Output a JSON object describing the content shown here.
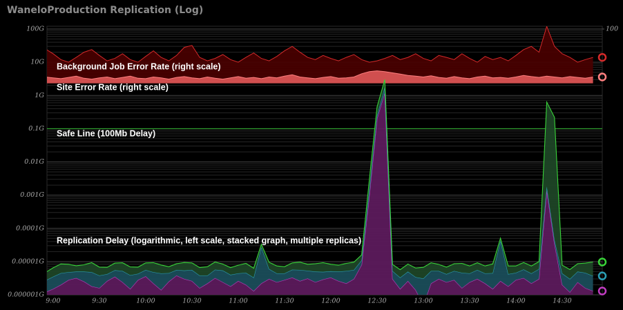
{
  "chart_data": {
    "type": "log_area",
    "title": "WaneloProduction Replication (Log)",
    "categories": [
      null,
      "9:00",
      null,
      null,
      null,
      null,
      null,
      "9:30",
      null,
      null,
      null,
      null,
      null,
      "10:00",
      null,
      null,
      null,
      null,
      null,
      "10:30",
      null,
      null,
      null,
      null,
      null,
      "11:00",
      null,
      null,
      null,
      null,
      null,
      "11:30",
      null,
      null,
      null,
      null,
      null,
      "12:00",
      null,
      null,
      null,
      null,
      null,
      "12:30",
      null,
      null,
      null,
      null,
      null,
      "13:00",
      null,
      null,
      null,
      null,
      null,
      "13:30",
      null,
      null,
      null,
      null,
      null,
      "14:00",
      null,
      null,
      null,
      null,
      null,
      "14:30",
      null,
      null,
      null,
      null
    ],
    "log_y": true,
    "grid": true,
    "ylim": [
      1e-06,
      100
    ],
    "yticks": [
      {
        "value": 100,
        "label": "100G"
      },
      {
        "value": 10,
        "label": "10G"
      },
      {
        "value": 1,
        "label": "1G"
      },
      {
        "value": 0.1,
        "label": "0.1G"
      },
      {
        "value": 0.01,
        "label": "0.01G"
      },
      {
        "value": 0.001,
        "label": "0.001G"
      },
      {
        "value": 0.0001,
        "label": "0.0001G"
      },
      {
        "value": 1e-05,
        "label": "0.00001G"
      },
      {
        "value": 1e-06,
        "label": "0.000001G"
      }
    ],
    "y2lim": [
      1e-06,
      100
    ],
    "y2ticks": [
      100
    ],
    "series": [
      {
        "name": "Background Job Error Rate (right scale)",
        "axis": "y2",
        "color": "#d42a2a",
        "fill": "#4a0000",
        "values": [
          25,
          18,
          12,
          10,
          14,
          20,
          24,
          16,
          11,
          13,
          18,
          12,
          10,
          15,
          22,
          14,
          11,
          16,
          28,
          32,
          14,
          11,
          13,
          17,
          12,
          10,
          14,
          19,
          13,
          11,
          15,
          22,
          30,
          20,
          14,
          12,
          16,
          13,
          11,
          14,
          17,
          12,
          10,
          11,
          13,
          16,
          12,
          14,
          18,
          13,
          11,
          16,
          14,
          12,
          18,
          13,
          10,
          15,
          12,
          14,
          11,
          16,
          24,
          30,
          20,
          120,
          30,
          18,
          14,
          10,
          12,
          14
        ]
      },
      {
        "name": "Site Error Rate (right scale)",
        "axis": "y2",
        "color": "#ff8080",
        "fill": "#e05858",
        "values": [
          3.6,
          3.4,
          3.2,
          3.5,
          3.8,
          3.3,
          3.1,
          3.4,
          3.6,
          3.2,
          3.5,
          3.8,
          3.3,
          3.2,
          3.6,
          3.4,
          3.1,
          3.5,
          3.7,
          3.4,
          3.2,
          3.6,
          3.3,
          3.1,
          3.4,
          3.7,
          3.3,
          3.5,
          3.2,
          3.6,
          3.4,
          3.8,
          4.2,
          3.6,
          3.4,
          3.2,
          3.5,
          3.7,
          3.3,
          3.4,
          3.6,
          4.5,
          5.2,
          5.5,
          5.2,
          4.8,
          4.4,
          4,
          3.8,
          3.6,
          3.9,
          3.5,
          3.3,
          3.7,
          3.4,
          3.2,
          3.6,
          3.8,
          3.4,
          3.5,
          3.3,
          3.6,
          4,
          3.7,
          3.5,
          3.8,
          3.6,
          3.4,
          3.7,
          3.5,
          3.3,
          3.6
        ]
      }
    ],
    "safe_line": {
      "name": "Safe Line (100Mb Delay)",
      "value": 0.1,
      "color": "#2fb52f"
    },
    "stacked_group": {
      "name": "Replication Delay (logarithmic, left scale, stacked graph, multiple replicas)",
      "stacked": true,
      "series": [
        {
          "color": "#c13cc1",
          "fill": "#5c1a5c",
          "values": [
            1.2e-06,
            1.5e-06,
            2e-06,
            2.8e-06,
            3.2e-06,
            2.5e-06,
            1.8e-06,
            1.6e-06,
            2.6e-06,
            3.5e-06,
            2.4e-06,
            1.5e-06,
            2.8e-06,
            3.6e-06,
            2.2e-06,
            1.4e-06,
            2.5e-06,
            3.8e-06,
            3e-06,
            2.6e-06,
            1.6e-06,
            2.2e-06,
            3.2e-06,
            2.4e-06,
            1.8e-06,
            2.6e-06,
            2e-06,
            1.3e-06,
            2.2e-06,
            3e-06,
            2.4e-06,
            2.8e-06,
            3.3e-06,
            2.6e-06,
            3.1e-06,
            2.4e-06,
            2.9e-06,
            3.3e-06,
            2.6e-06,
            2.2e-06,
            3e-06,
            8e-06,
            0.001,
            0.2,
            1.2,
            3e-06,
            1.5e-06,
            2.6e-06,
            1.4e-06,
            5e-07,
            2.2e-06,
            3e-06,
            2.4e-06,
            2.8e-06,
            1.6e-06,
            2.4e-06,
            3e-06,
            2.2e-06,
            1.5e-06,
            2.6e-06,
            1.8e-06,
            2.8e-06,
            3.2e-06,
            2.2e-06,
            3e-06,
            0.0014,
            3.5e-05,
            2e-06,
            1.2e-06,
            2.4e-06,
            1.6e-06,
            1.3e-06
          ]
        },
        {
          "color": "#2a9fb5",
          "fill": "#1a4d5a",
          "values": [
            1.5e-06,
            2e-06,
            2.5e-06,
            2e-06,
            1.8e-06,
            2.5e-06,
            3e-06,
            2.2e-06,
            1.6e-06,
            2e-06,
            2.8e-06,
            2.4e-06,
            1.5e-06,
            2e-06,
            2.6e-06,
            3e-06,
            2e-06,
            1.8e-06,
            2.4e-06,
            3e-06,
            2.2e-06,
            1.6e-06,
            2.5e-06,
            3e-06,
            2.2e-06,
            1.8e-06,
            2.6e-06,
            2e-06,
            2.5e-05,
            3e-06,
            2e-06,
            1.6e-06,
            2.4e-06,
            3e-06,
            2.2e-06,
            2.6e-06,
            2e-06,
            1.8e-06,
            2.4e-06,
            3e-06,
            2.6e-06,
            3e-06,
            0.0005,
            0.05,
            0.6,
            2.2e-06,
            1.8e-06,
            2.4e-06,
            2e-06,
            2.6e-06,
            3e-06,
            2.2e-06,
            1.8e-06,
            2.4e-06,
            3e-06,
            2e-06,
            2.6e-06,
            2.2e-06,
            3e-06,
            4e-05,
            2.4e-06,
            1.8e-06,
            2.6e-06,
            2.2e-06,
            3e-06,
            0.0004,
            1e-05,
            2.4e-06,
            1.8e-06,
            2.6e-06,
            3e-06,
            2.4e-06
          ]
        },
        {
          "color": "#39d439",
          "fill": "#1d4526",
          "values": [
            2e-06,
            3e-06,
            4e-06,
            3.5e-06,
            2.5e-06,
            3e-06,
            4.5e-06,
            3e-06,
            2.5e-06,
            3.5e-06,
            4e-06,
            3e-06,
            2.5e-06,
            3.5e-06,
            4.5e-06,
            3.5e-06,
            2.5e-06,
            3e-06,
            4e-06,
            3.5e-06,
            2.8e-06,
            3.2e-06,
            4e-06,
            3e-06,
            2.6e-06,
            3.4e-06,
            4.2e-06,
            3e-06,
            6e-06,
            3.5e-06,
            3e-06,
            2.6e-06,
            3.4e-06,
            4e-06,
            3e-06,
            3.6e-06,
            4.4e-06,
            3.2e-06,
            2.8e-06,
            3.6e-06,
            4e-06,
            5e-06,
            0.0015,
            0.2,
            1.2,
            3e-06,
            2.4e-06,
            3.4e-06,
            3e-06,
            3.6e-06,
            4e-06,
            3e-06,
            2.6e-06,
            3.4e-06,
            4.2e-06,
            3e-06,
            3.6e-06,
            3e-06,
            4e-06,
            8e-06,
            3.2e-06,
            2.8e-06,
            3.6e-06,
            3e-06,
            4e-06,
            0.63,
            0.22,
            3.4e-06,
            2.8e-06,
            3.6e-06,
            4.4e-06,
            6e-06
          ]
        }
      ]
    }
  }
}
